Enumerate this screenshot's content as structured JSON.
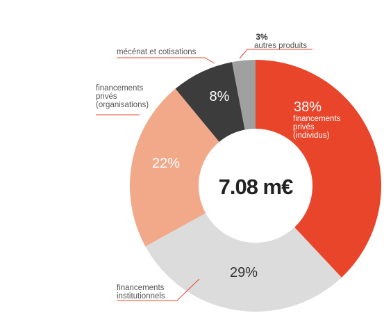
{
  "chart_data": {
    "type": "pie",
    "subtype": "donut",
    "total_label": "7.08 m€",
    "slices": [
      {
        "pct": "38%",
        "value": 38,
        "label_lines": [
          "financements",
          "privés",
          "(individus)"
        ],
        "color": "#e8452a"
      },
      {
        "pct": "29%",
        "value": 29,
        "label_lines": [
          "financements",
          "institutionnels"
        ],
        "color": "#dcdcdc"
      },
      {
        "pct": "22%",
        "value": 22,
        "label_lines": [
          "financements",
          "privés",
          "(organisations)"
        ],
        "color": "#f2a98a"
      },
      {
        "pct": "8%",
        "value": 8,
        "label_lines": [
          "mécénat et cotisations"
        ],
        "color": "#3c3c3c"
      },
      {
        "pct": "3%",
        "value": 3,
        "label_lines": [
          "autres produits"
        ],
        "color": "#a0a0a0"
      }
    ],
    "leader_color": "#e8452a"
  }
}
